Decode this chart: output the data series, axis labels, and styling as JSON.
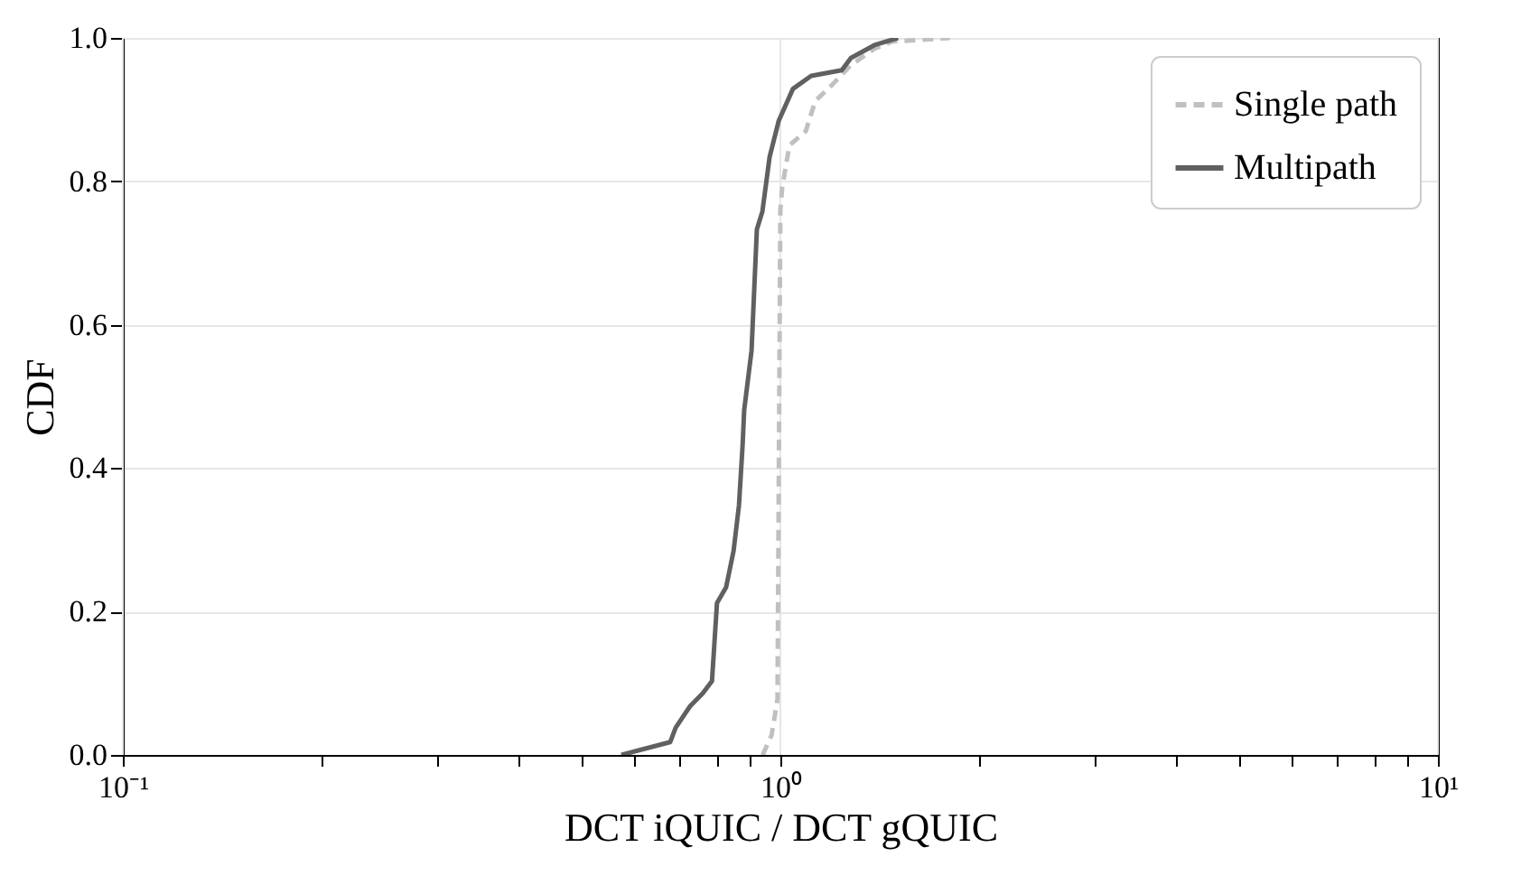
{
  "chart_data": {
    "type": "line",
    "xlabel": "DCT iQUIC / DCT gQUIC",
    "ylabel": "CDF",
    "log": "x",
    "grid": true,
    "legend": "top right",
    "xlim": [
      0.1,
      10
    ],
    "ylim": [
      0,
      1
    ],
    "xticks": [
      {
        "value": 0.1,
        "label": "10⁻¹"
      },
      {
        "value": 0.2,
        "label": null
      },
      {
        "value": 0.3,
        "label": null
      },
      {
        "value": 0.4,
        "label": null
      },
      {
        "value": 0.5,
        "label": null
      },
      {
        "value": 0.6,
        "label": null
      },
      {
        "value": 0.7,
        "label": null
      },
      {
        "value": 0.8,
        "label": null
      },
      {
        "value": 0.9,
        "label": null
      },
      {
        "value": 1,
        "label": "10⁰"
      },
      {
        "value": 2,
        "label": null
      },
      {
        "value": 3,
        "label": null
      },
      {
        "value": 4,
        "label": null
      },
      {
        "value": 5,
        "label": null
      },
      {
        "value": 6,
        "label": null
      },
      {
        "value": 7,
        "label": null
      },
      {
        "value": 8,
        "label": null
      },
      {
        "value": 9,
        "label": null
      },
      {
        "value": 10,
        "label": "10¹"
      }
    ],
    "yticks": [
      {
        "value": 0,
        "label": "0.0"
      },
      0.2,
      0.4,
      0.6,
      0.8,
      {
        "value": 1,
        "label": "1.0"
      }
    ],
    "series": [
      {
        "name": "Single path",
        "color": "#c0c0c0",
        "line_style": "dashed",
        "x": [
          0.94,
          0.97,
          0.99,
          1.0,
          1.006,
          1.032,
          1.093,
          1.13,
          1.2,
          1.28,
          1.39,
          1.48,
          1.81
        ],
        "values": [
          0,
          0.028,
          0.078,
          0.76,
          0.79,
          0.85,
          0.87,
          0.912,
          0.935,
          0.962,
          0.985,
          0.995,
          1.0
        ]
      },
      {
        "name": "Multipath",
        "color": "#606060",
        "line_style": "solid",
        "x": [
          0.573,
          0.68,
          0.693,
          0.729,
          0.762,
          0.787,
          0.801,
          0.827,
          0.849,
          0.865,
          0.876,
          0.881,
          0.904,
          0.921,
          0.939,
          0.963,
          0.994,
          1.045,
          1.114,
          1.24,
          1.28,
          1.39,
          1.51
        ],
        "values": [
          0,
          0.018,
          0.038,
          0.068,
          0.086,
          0.103,
          0.212,
          0.234,
          0.285,
          0.348,
          0.431,
          0.481,
          0.564,
          0.733,
          0.758,
          0.834,
          0.884,
          0.929,
          0.947,
          0.955,
          0.972,
          0.99,
          1.0
        ]
      }
    ]
  }
}
